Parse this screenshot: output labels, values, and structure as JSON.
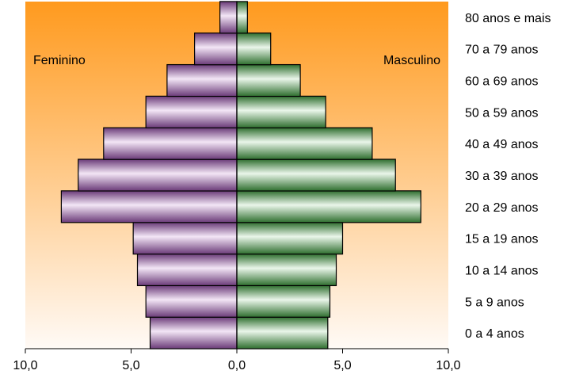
{
  "chart_data": {
    "type": "bar",
    "orientation": "horizontal",
    "layout": "population-pyramid",
    "categories": [
      "0 a 4 anos",
      "5 a 9 anos",
      "10 a 14 anos",
      "15 a 19 anos",
      "20 a 29 anos",
      "30 a 39 anos",
      "40 a 49 anos",
      "50 a 59 anos",
      "60 a 69 anos",
      "70 a 79 anos",
      "80 anos e mais"
    ],
    "series": [
      {
        "name": "Feminino",
        "side": "left",
        "color": "#b38fc4",
        "values": [
          4.1,
          4.3,
          4.7,
          4.9,
          8.3,
          7.5,
          6.3,
          4.3,
          3.3,
          2.0,
          0.8
        ]
      },
      {
        "name": "Masculino",
        "side": "right",
        "color": "#5aa05a",
        "values": [
          4.3,
          4.4,
          4.7,
          5.0,
          8.7,
          7.5,
          6.4,
          4.2,
          3.0,
          1.6,
          0.5
        ]
      }
    ],
    "xlim": [
      -10,
      10
    ],
    "xticks": [
      -10,
      -5,
      0,
      5,
      10
    ],
    "xtick_labels": [
      "10,0",
      "5,0",
      "0,0",
      "5,0",
      "10,0"
    ],
    "legend": "inside, top-left and top-right",
    "background": {
      "top": "#ff9a1e",
      "bottom": "#fffaf6"
    },
    "grid": false
  }
}
